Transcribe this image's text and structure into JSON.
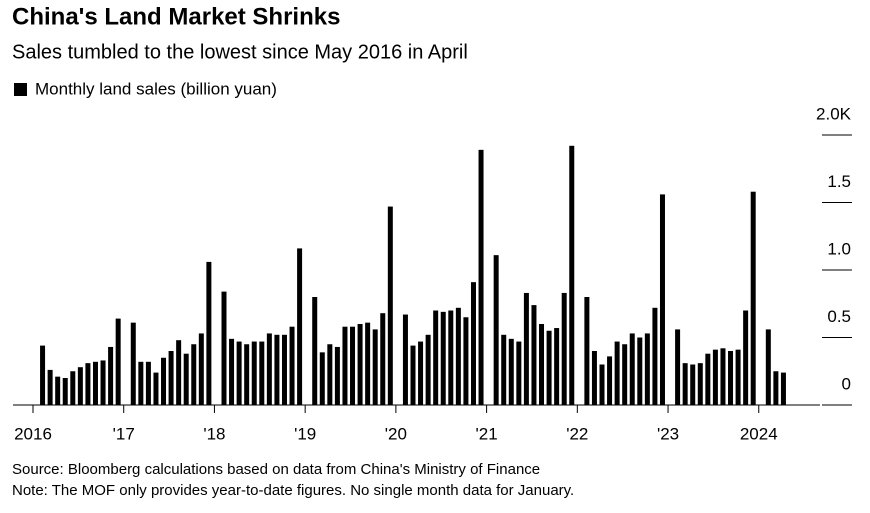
{
  "chart_data": {
    "type": "bar",
    "title": "China's Land Market Shrinks",
    "subtitle": "Sales tumbled to the lowest since May 2016 in April",
    "notes": [
      "Source: Bloomberg calculations based on data from China's Ministry of Finance",
      "Note: The MOF only provides year-to-date figures. No single month data for January."
    ],
    "categories": [
      "2016",
      null,
      null,
      null,
      null,
      null,
      null,
      null,
      null,
      null,
      null,
      null,
      "'17",
      null,
      null,
      null,
      null,
      null,
      null,
      null,
      null,
      null,
      null,
      null,
      "'18",
      null,
      null,
      null,
      null,
      null,
      null,
      null,
      null,
      null,
      null,
      null,
      "'19",
      null,
      null,
      null,
      null,
      null,
      null,
      null,
      null,
      null,
      null,
      null,
      "'20",
      null,
      null,
      null,
      null,
      null,
      null,
      null,
      null,
      null,
      null,
      null,
      "'21",
      null,
      null,
      null,
      null,
      null,
      null,
      null,
      null,
      null,
      null,
      null,
      "'22",
      null,
      null,
      null,
      null,
      null,
      null,
      null,
      null,
      null,
      null,
      null,
      "'23",
      null,
      null,
      null,
      null,
      null,
      null,
      null,
      null,
      null,
      null,
      null,
      "2024",
      null,
      null,
      null
    ],
    "series": [
      {
        "name": "Monthly land sales (billion yuan)",
        "color": "#000000",
        "values": [
          null,
          440,
          260,
          210,
          200,
          250,
          280,
          310,
          320,
          330,
          430,
          640,
          null,
          610,
          320,
          320,
          240,
          350,
          400,
          480,
          380,
          450,
          530,
          1060,
          null,
          840,
          490,
          470,
          450,
          470,
          470,
          530,
          520,
          520,
          580,
          1160,
          null,
          800,
          390,
          450,
          430,
          580,
          580,
          600,
          610,
          560,
          680,
          1470,
          null,
          670,
          440,
          470,
          520,
          700,
          690,
          700,
          720,
          650,
          910,
          1890,
          null,
          1110,
          520,
          490,
          470,
          830,
          740,
          600,
          550,
          570,
          830,
          1920,
          null,
          800,
          400,
          300,
          360,
          470,
          450,
          530,
          500,
          530,
          720,
          1560,
          null,
          560,
          310,
          300,
          310,
          380,
          410,
          420,
          400,
          410,
          700,
          1580,
          null,
          560,
          250,
          240
        ]
      }
    ],
    "ylim": [
      0,
      2000
    ],
    "yticks": [
      0,
      {
        "value": 500,
        "label": "0.5"
      },
      {
        "value": 1000,
        "label": "1.0"
      },
      {
        "value": 1500,
        "label": "1.5"
      },
      {
        "value": 2000,
        "label": "2.0K"
      }
    ]
  }
}
